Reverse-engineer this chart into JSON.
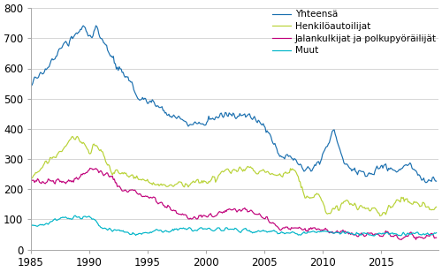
{
  "ylim": [
    0,
    800
  ],
  "yticks": [
    0,
    100,
    200,
    300,
    400,
    500,
    600,
    700,
    800
  ],
  "xticks": [
    1985,
    1990,
    1995,
    2000,
    2005,
    2010,
    2015
  ],
  "xlim_start": 1985,
  "xlim_end": 2019.92,
  "line_colors": {
    "yhteensa": "#1a6faf",
    "henkiloautoilijat": "#b8d235",
    "jalankulkijat": "#c0007a",
    "muut": "#00b5c8"
  },
  "legend_labels": [
    "Yhteensä",
    "Henkilöautoilijat",
    "Jalankulkijat ja polkupyöräilijät",
    "Muut"
  ],
  "background_color": "#ffffff",
  "grid_color": "#d0d0d0",
  "line_width": 0.85,
  "font_size": 8.5,
  "legend_font_size": 7.5
}
